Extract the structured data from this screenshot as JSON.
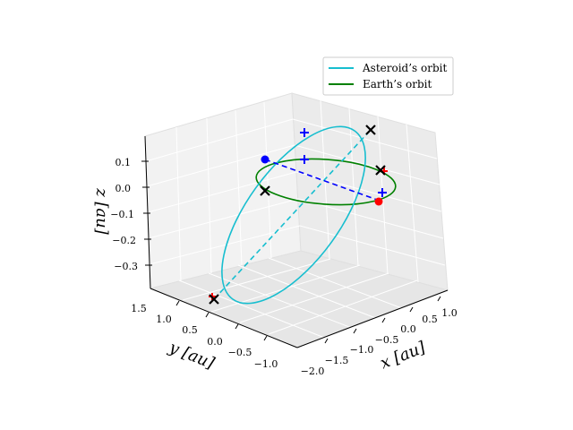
{
  "chart_data": {
    "type": "line3d",
    "title": "",
    "axes": {
      "x": {
        "label": "x [au]",
        "ticks": [
          "−2.0",
          "−1.5",
          "−1.0",
          "−0.5",
          "0.0",
          "0.5",
          "1.0"
        ]
      },
      "y": {
        "label": "y [au]",
        "ticks": [
          "1.5",
          "1.0",
          "0.5",
          "0.0",
          "−0.5",
          "−1.0"
        ]
      },
      "z": {
        "label": "z [au]",
        "ticks": [
          "0.1",
          "0.0",
          "−0.1",
          "−0.2",
          "−0.3"
        ]
      }
    },
    "grid": true,
    "legend": {
      "placement": "top-right",
      "entries": [
        {
          "name": "Asteroid’s orbit",
          "color": "#17becf"
        },
        {
          "name": "Earth’s orbit",
          "color": "#008000"
        }
      ]
    },
    "series": [
      {
        "name": "Asteroid’s orbit",
        "kind": "ellipse",
        "color": "#17becf"
      },
      {
        "name": "Earth’s orbit",
        "kind": "ellipse",
        "color": "#008000"
      }
    ],
    "markers": {
      "blue_points": 1,
      "red_points": 3,
      "black_crosses": 5,
      "blue_pluses": 3
    },
    "colors": {
      "asteroid": "#17becf",
      "earth": "#008000",
      "blue": "#0000ff",
      "red": "#ff0000"
    }
  }
}
